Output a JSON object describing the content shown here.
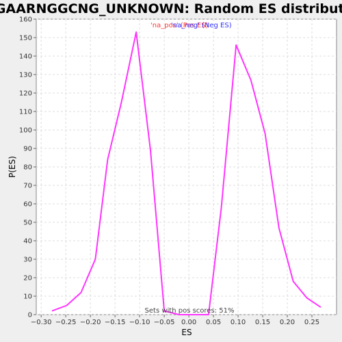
{
  "chart_data": {
    "type": "line",
    "title": "CGGAARNGGCNG_UNKNOWN: Random ES distribution",
    "xlabel": "ES",
    "ylabel": "P(ES)",
    "xlim": [
      -0.31,
      0.3
    ],
    "ylim": [
      0,
      160
    ],
    "x_ticks": [
      "−0.30",
      "−0.25",
      "−0.20",
      "−0.15",
      "−0.10",
      "−0.05",
      "0.00",
      "0.05",
      "0.10",
      "0.15",
      "0.20",
      "0.25"
    ],
    "x_tick_values": [
      -0.3,
      -0.25,
      -0.2,
      -0.15,
      -0.1,
      -0.05,
      0.0,
      0.05,
      0.1,
      0.15,
      0.2,
      0.25
    ],
    "y_ticks": [
      "0",
      "10",
      "20",
      "30",
      "40",
      "50",
      "60",
      "70",
      "80",
      "90",
      "100",
      "110",
      "120",
      "130",
      "140",
      "150",
      "160"
    ],
    "y_tick_values": [
      0,
      10,
      20,
      30,
      40,
      50,
      60,
      70,
      80,
      90,
      100,
      110,
      120,
      130,
      140,
      150,
      160
    ],
    "grid": true,
    "legend": [
      {
        "name": "'na_pos' (Pos ES)",
        "color": "#ff3333"
      },
      {
        "name": "'na_neg' (Neg ES)",
        "color": "#3333ff"
      }
    ],
    "legend_placement": "top-center",
    "series": [
      {
        "color": "#ff33ff",
        "x": [
          -0.278,
          -0.248,
          -0.219,
          -0.19,
          -0.165,
          -0.137,
          -0.107,
          -0.078,
          -0.05,
          -0.02,
          0.0,
          0.012,
          0.04,
          0.066,
          0.096,
          0.126,
          0.155,
          0.183,
          0.212,
          0.24,
          0.268
        ],
        "y": [
          2,
          5,
          12,
          30,
          84,
          115,
          153,
          89,
          2,
          0,
          0,
          0,
          0,
          58,
          146,
          127,
          98,
          47,
          18,
          9,
          4
        ]
      }
    ],
    "annotation": "Sets with pos scores: 51%"
  }
}
